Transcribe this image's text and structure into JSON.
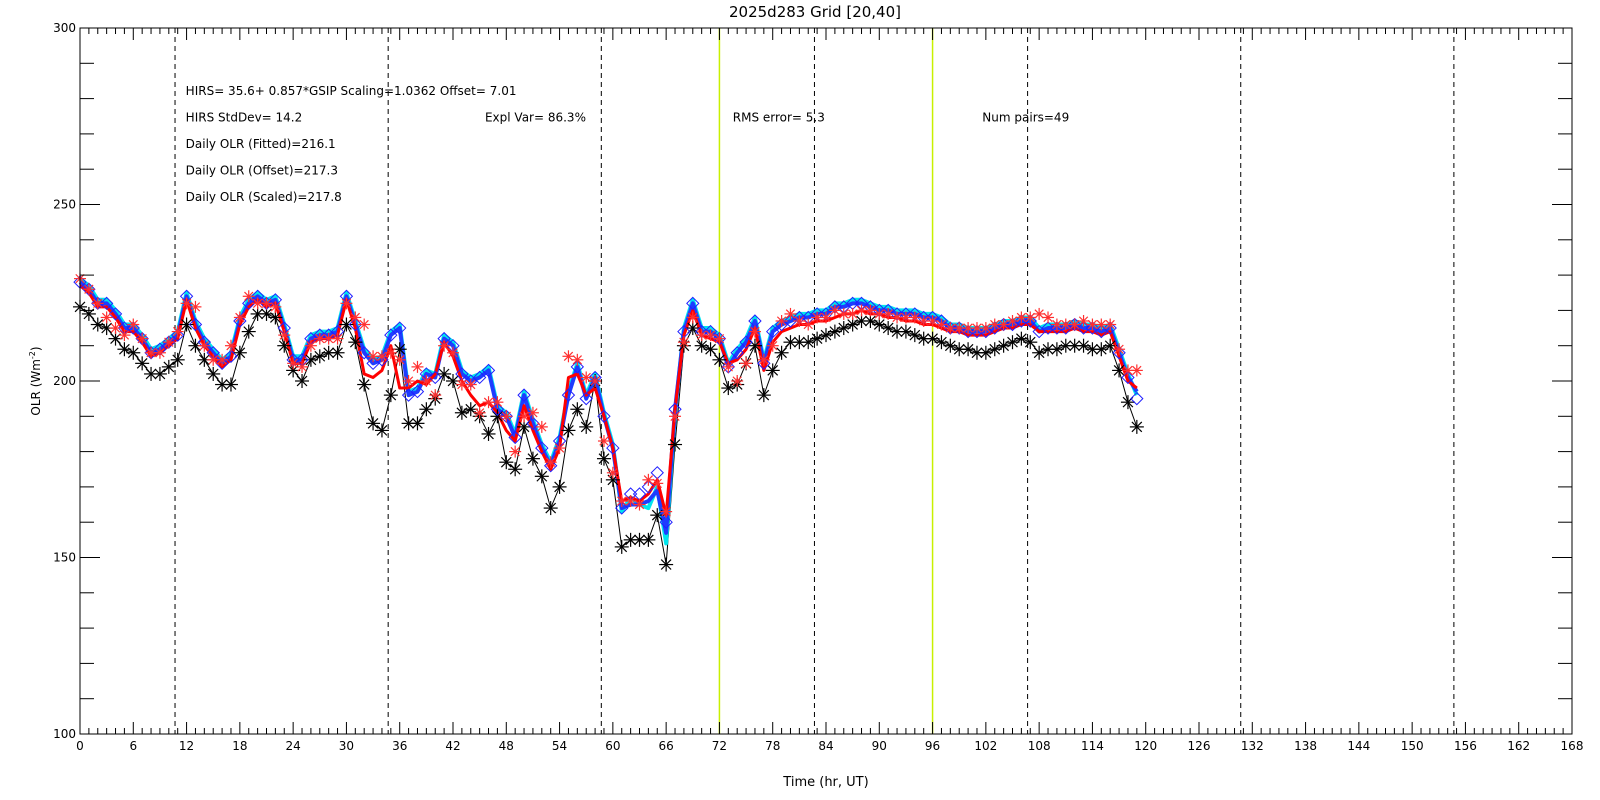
{
  "chart_data": {
    "type": "line",
    "title": "2025d283 Grid [20,40]",
    "xlabel": "Time (hr, UT)",
    "ylabel": "OLR (Wm",
    "ylabel_sup": "-2",
    "ylabel_close": ")",
    "xlim": [
      0,
      168
    ],
    "ylim": [
      100,
      300
    ],
    "x_ticks": [
      "0",
      "6",
      "12",
      "18",
      "24",
      "30",
      "36",
      "42",
      "48",
      "54",
      "60",
      "66",
      "72",
      "78",
      "84",
      "90",
      "96",
      "102",
      "108",
      "114",
      "120",
      "126",
      "132",
      "138",
      "144",
      "150",
      "156",
      "162",
      "168"
    ],
    "y_ticks": [
      "100",
      "150",
      "200",
      "250",
      "300"
    ],
    "annotations": [
      {
        "text": "HIRS=   35.6+  0.857*GSIP  Scaling=1.0362  Offset=  7.01",
        "x": 11.9,
        "y": 281
      },
      {
        "text": "HIRS StdDev= 14.2",
        "x": 11.9,
        "y": 273.5
      },
      {
        "text": "Expl Var= 86.3%",
        "x": 45.6,
        "y": 273.5
      },
      {
        "text": "RMS error=  5.3",
        "x": 73.5,
        "y": 273.5
      },
      {
        "text": "Num pairs=49",
        "x": 101.6,
        "y": 273.5
      },
      {
        "text": "Daily OLR (Fitted)=216.1",
        "x": 11.9,
        "y": 266
      },
      {
        "text": "Daily OLR (Offset)=217.3",
        "x": 11.9,
        "y": 258.5
      },
      {
        "text": "Daily OLR (Scaled)=217.8",
        "x": 11.9,
        "y": 251
      }
    ],
    "vlines_dashed": [
      10.7,
      34.7,
      58.7,
      82.7,
      106.7,
      130.7,
      154.7
    ],
    "vlines_green": [
      72,
      96
    ],
    "series": [
      {
        "marker": "star",
        "color": "#000000",
        "x": [
          0,
          1,
          2,
          3,
          4,
          5,
          6,
          7,
          8,
          9,
          10,
          11,
          12,
          13,
          14,
          15,
          16,
          17,
          18,
          19,
          20,
          21,
          22,
          23,
          24,
          25,
          26,
          27,
          28,
          29,
          30,
          31,
          32,
          33,
          34,
          35,
          36,
          37,
          38,
          39,
          40,
          41,
          42,
          43,
          44,
          45,
          46,
          47,
          48,
          49,
          50,
          51,
          52,
          53,
          54,
          55,
          56,
          57,
          58,
          59,
          60,
          61,
          62,
          63,
          64,
          65,
          66,
          67,
          68,
          69,
          70,
          71,
          72,
          73,
          74,
          75,
          76,
          77,
          78,
          79,
          80,
          81,
          82,
          83,
          84,
          85,
          86,
          87,
          88,
          89,
          90,
          91,
          92,
          93,
          94,
          95,
          96,
          97,
          98,
          99,
          100,
          101,
          102,
          103,
          104,
          105,
          106,
          107,
          108,
          109,
          110,
          111,
          112,
          113,
          114,
          115,
          116,
          117,
          118,
          119
        ],
        "y": [
          221,
          219,
          216,
          215,
          212,
          209,
          208,
          205,
          202,
          202,
          204,
          206,
          216,
          210,
          206,
          202,
          199,
          199,
          208,
          214,
          219,
          219,
          218,
          210,
          203,
          200,
          206,
          207,
          208,
          208,
          216,
          211,
          199,
          188,
          186,
          196,
          209,
          188,
          188,
          192,
          195,
          202,
          200,
          191,
          192,
          190,
          185,
          190,
          177,
          175,
          187,
          178,
          173,
          164,
          170,
          186,
          192,
          187,
          200,
          178,
          172,
          153,
          155,
          155,
          155,
          162,
          148,
          182,
          210,
          215,
          210,
          209,
          206,
          198,
          199,
          205,
          210,
          196,
          203,
          208,
          211,
          211,
          211,
          212,
          213,
          214,
          215,
          216,
          217,
          217,
          216,
          215,
          214,
          214,
          213,
          212,
          212,
          211,
          210,
          209,
          209,
          208,
          208,
          209,
          210,
          211,
          212,
          211,
          208,
          209,
          209,
          210,
          210,
          210,
          209,
          209,
          210,
          203,
          194,
          187
        ]
      },
      {
        "marker": "diamond",
        "color": "#2020ff",
        "x": [
          0,
          1,
          2,
          3,
          4,
          5,
          6,
          7,
          8,
          9,
          10,
          11,
          12,
          13,
          14,
          15,
          16,
          17,
          18,
          19,
          20,
          21,
          22,
          23,
          24,
          25,
          26,
          27,
          28,
          29,
          30,
          31,
          32,
          33,
          34,
          35,
          36,
          37,
          38,
          39,
          40,
          41,
          42,
          43,
          44,
          45,
          46,
          47,
          48,
          49,
          50,
          51,
          52,
          53,
          54,
          55,
          56,
          57,
          58,
          59,
          60,
          61,
          62,
          63,
          64,
          65,
          66,
          67,
          68,
          69,
          70,
          71,
          72,
          73,
          74,
          75,
          76,
          77,
          78,
          79,
          80,
          81,
          82,
          83,
          84,
          85,
          86,
          87,
          88,
          89,
          90,
          91,
          92,
          93,
          94,
          95,
          96,
          97,
          98,
          99,
          100,
          101,
          102,
          103,
          104,
          105,
          106,
          107,
          108,
          109,
          110,
          111,
          112,
          113,
          114,
          115,
          116,
          117,
          118,
          119
        ],
        "y": [
          228,
          226,
          222,
          222,
          219,
          215,
          215,
          212,
          208,
          209,
          211,
          213,
          224,
          216,
          211,
          208,
          205,
          207,
          217,
          222,
          224,
          222,
          223,
          215,
          206,
          206,
          212,
          213,
          213,
          214,
          224,
          216,
          208,
          205,
          206,
          213,
          215,
          196,
          197,
          202,
          201,
          212,
          210,
          202,
          200,
          201,
          203,
          192,
          190,
          184,
          196,
          188,
          181,
          176,
          183,
          196,
          204,
          195,
          201,
          190,
          181,
          164,
          168,
          168,
          170,
          174,
          160,
          192,
          214,
          222,
          214,
          214,
          212,
          204,
          208,
          211,
          217,
          205,
          214,
          216,
          217,
          218,
          218,
          219,
          219,
          221,
          221,
          222,
          222,
          221,
          220,
          220,
          219,
          219,
          219,
          218,
          218,
          217,
          215,
          215,
          214,
          214,
          214,
          215,
          216,
          216,
          217,
          217,
          214,
          215,
          215,
          215,
          216,
          215,
          215,
          214,
          215,
          208,
          201,
          195
        ]
      },
      {
        "marker": "asterisk",
        "color": "#ff3030",
        "x": [
          0,
          1,
          2,
          3,
          4,
          5,
          6,
          7,
          8,
          9,
          10,
          11,
          12,
          13,
          14,
          15,
          16,
          17,
          18,
          19,
          20,
          21,
          22,
          23,
          24,
          25,
          26,
          27,
          28,
          29,
          30,
          31,
          32,
          33,
          34,
          35,
          36,
          37,
          38,
          39,
          40,
          41,
          42,
          43,
          44,
          45,
          46,
          47,
          48,
          49,
          50,
          51,
          52,
          53,
          54,
          55,
          56,
          57,
          58,
          59,
          60,
          61,
          62,
          63,
          64,
          65,
          66,
          67,
          68,
          69,
          70,
          71,
          72,
          73,
          74,
          75,
          76,
          77,
          78,
          79,
          80,
          81,
          82,
          83,
          84,
          85,
          86,
          87,
          88,
          89,
          90,
          91,
          92,
          93,
          94,
          95,
          96,
          97,
          98,
          99,
          100,
          101,
          102,
          103,
          104,
          105,
          106,
          107,
          108,
          109,
          110,
          111,
          112,
          113,
          114,
          115,
          116,
          117,
          118,
          119
        ],
        "y": [
          229,
          226,
          222,
          218,
          215,
          213,
          216,
          212,
          208,
          208,
          211,
          214,
          222,
          221,
          210,
          206,
          206,
          210,
          218,
          224,
          222,
          222,
          221,
          213,
          205,
          204,
          210,
          212,
          212,
          212,
          222,
          218,
          216,
          207,
          207,
          208,
          206,
          200,
          204,
          200,
          196,
          210,
          208,
          199,
          199,
          191,
          194,
          194,
          190,
          180,
          190,
          191,
          187,
          177,
          181,
          207,
          206,
          201,
          200,
          183,
          174,
          166,
          166,
          165,
          172,
          171,
          163,
          190,
          211,
          218,
          213,
          213,
          212,
          204,
          200,
          205,
          214,
          206,
          210,
          217,
          219,
          217,
          216,
          218,
          218,
          220,
          219,
          219,
          220,
          220,
          219,
          219,
          218,
          218,
          218,
          217,
          217,
          216,
          215,
          215,
          215,
          215,
          215,
          216,
          216,
          217,
          218,
          218,
          219,
          218,
          216,
          216,
          216,
          217,
          216,
          216,
          216,
          209,
          203,
          203
        ]
      }
    ],
    "lines": [
      {
        "color": "#00e5ee",
        "width": 4,
        "y": [
          229,
          227,
          223,
          223,
          220,
          216,
          216,
          213,
          209,
          210,
          212,
          214,
          225,
          217,
          212,
          209,
          206,
          208,
          218,
          223,
          225,
          223,
          224,
          216,
          207,
          207,
          213,
          214,
          214,
          215,
          225,
          217,
          209,
          206,
          207,
          214,
          216,
          197,
          198,
          203,
          202,
          213,
          211,
          203,
          201,
          202,
          204,
          193,
          191,
          185,
          197,
          189,
          182,
          177,
          184,
          197,
          205,
          196,
          202,
          191,
          182,
          163,
          167,
          165,
          164,
          170,
          154,
          191,
          215,
          223,
          215,
          215,
          213,
          205,
          209,
          212,
          218,
          206,
          215,
          217,
          218,
          219,
          219,
          220,
          220,
          222,
          222,
          223,
          223,
          222,
          221,
          221,
          220,
          220,
          220,
          219,
          219,
          218,
          216,
          216,
          215,
          215,
          215,
          216,
          217,
          217,
          218,
          218,
          215,
          216,
          216,
          216,
          217,
          216,
          216,
          215,
          216,
          209,
          202,
          196
        ]
      },
      {
        "color": "#1e3cff",
        "width": 4,
        "y": [
          228,
          226,
          222,
          222,
          219,
          215,
          215,
          212,
          208,
          209,
          211,
          213,
          224,
          216,
          211,
          208,
          205,
          207,
          217,
          222,
          224,
          222,
          223,
          215,
          206,
          206,
          212,
          213,
          213,
          214,
          224,
          216,
          208,
          205,
          206,
          213,
          215,
          196,
          197,
          202,
          201,
          212,
          210,
          202,
          200,
          201,
          203,
          192,
          190,
          184,
          196,
          188,
          181,
          176,
          183,
          196,
          204,
          195,
          201,
          190,
          181,
          164,
          165,
          165,
          166,
          169,
          157,
          192,
          214,
          222,
          214,
          214,
          212,
          204,
          208,
          211,
          217,
          205,
          214,
          216,
          217,
          218,
          218,
          219,
          219,
          221,
          221,
          222,
          222,
          221,
          220,
          220,
          219,
          219,
          219,
          218,
          218,
          217,
          215,
          215,
          214,
          214,
          214,
          215,
          216,
          216,
          217,
          217,
          214,
          215,
          215,
          215,
          216,
          215,
          215,
          214,
          215,
          208,
          201,
          197
        ]
      },
      {
        "color": "#ff0000",
        "width": 3,
        "y": [
          227,
          225,
          221,
          221,
          218,
          214,
          214,
          211,
          207,
          208,
          210,
          212,
          223,
          215,
          210,
          207,
          204,
          206,
          216,
          221,
          223,
          221,
          222,
          214,
          205,
          205,
          211,
          212,
          212,
          213,
          223,
          215,
          202,
          201,
          203,
          210,
          198,
          198,
          200,
          199,
          202,
          211,
          207,
          200,
          196,
          193,
          194,
          191,
          186,
          183,
          193,
          186,
          180,
          175,
          181,
          201,
          202,
          196,
          198,
          190,
          181,
          166,
          167,
          166,
          168,
          172,
          162,
          192,
          213,
          220,
          213,
          212,
          211,
          205,
          206,
          209,
          215,
          203,
          211,
          214,
          215,
          216,
          216,
          217,
          217,
          218,
          219,
          219,
          220,
          219,
          219,
          218,
          218,
          217,
          217,
          216,
          216,
          215,
          214,
          214,
          213,
          213,
          213,
          214,
          215,
          215,
          216,
          216,
          214,
          214,
          214,
          214,
          215,
          214,
          214,
          213,
          214,
          207,
          200,
          198
        ]
      }
    ]
  }
}
